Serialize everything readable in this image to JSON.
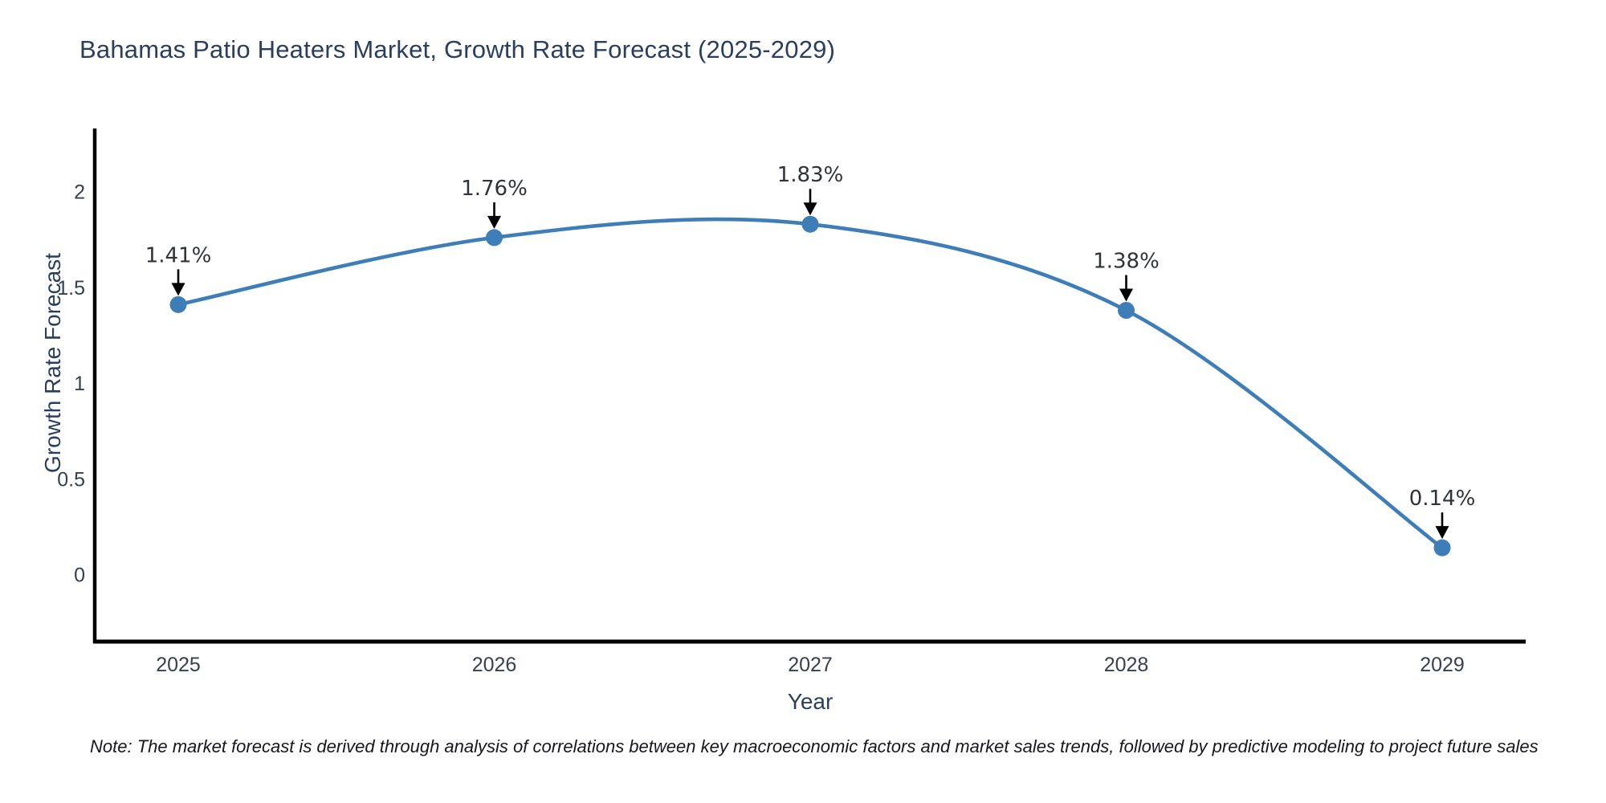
{
  "title": "Bahamas Patio Heaters Market, Growth Rate Forecast (2025-2029)",
  "note": "Note: The market forecast is derived through analysis of correlations between key macroeconomic factors and market sales trends, followed by predictive modeling to project future sales",
  "chart_data": {
    "type": "line",
    "title": "Bahamas Patio Heaters Market, Growth Rate Forecast (2025-2029)",
    "xlabel": "Year",
    "ylabel": "Growth Rate Forecast",
    "x": [
      2025,
      2026,
      2027,
      2028,
      2029
    ],
    "values": [
      1.41,
      1.76,
      1.83,
      1.38,
      0.14
    ],
    "point_labels": [
      "1.41%",
      "1.76%",
      "1.83%",
      "1.38%",
      "0.14%"
    ],
    "yticks": [
      0,
      0.5,
      1,
      1.5,
      2
    ],
    "ytick_labels": [
      "0",
      "0.5",
      "1",
      "1.5",
      "2"
    ],
    "ylim": [
      -0.35,
      2.33
    ],
    "line_shape": "spline",
    "grid": false,
    "legend": "none",
    "colors": {
      "line": "#3e7eb8",
      "marker": "#3e7eb8",
      "spine": "#000000",
      "tick_text": "#36404e",
      "annotation_text": "#2f3237",
      "arrow": "#000000",
      "title_text": "#2a3f5f"
    }
  }
}
